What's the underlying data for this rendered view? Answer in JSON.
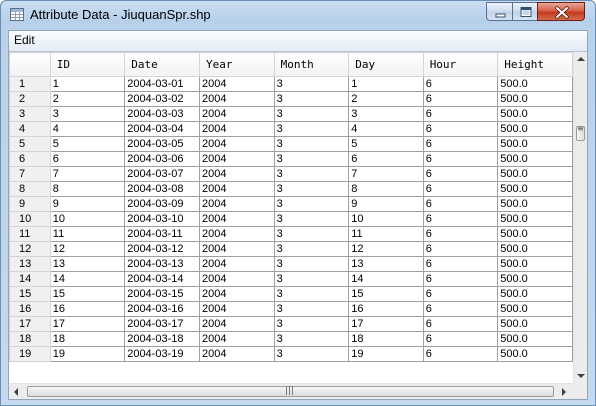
{
  "window": {
    "title": "Attribute Data - JiuquanSpr.shp"
  },
  "menu": {
    "items": [
      "Edit"
    ]
  },
  "table": {
    "columns": [
      "ID",
      "Date",
      "Year",
      "Month",
      "Day",
      "Hour",
      "Height"
    ],
    "rows": [
      {
        "num": "1",
        "cells": [
          "1",
          "2004-03-01",
          "2004",
          "3",
          "1",
          "6",
          "500.0"
        ]
      },
      {
        "num": "2",
        "cells": [
          "2",
          "2004-03-02",
          "2004",
          "3",
          "2",
          "6",
          "500.0"
        ]
      },
      {
        "num": "3",
        "cells": [
          "3",
          "2004-03-03",
          "2004",
          "3",
          "3",
          "6",
          "500.0"
        ]
      },
      {
        "num": "4",
        "cells": [
          "4",
          "2004-03-04",
          "2004",
          "3",
          "4",
          "6",
          "500.0"
        ]
      },
      {
        "num": "5",
        "cells": [
          "5",
          "2004-03-05",
          "2004",
          "3",
          "5",
          "6",
          "500.0"
        ]
      },
      {
        "num": "6",
        "cells": [
          "6",
          "2004-03-06",
          "2004",
          "3",
          "6",
          "6",
          "500.0"
        ]
      },
      {
        "num": "7",
        "cells": [
          "7",
          "2004-03-07",
          "2004",
          "3",
          "7",
          "6",
          "500.0"
        ]
      },
      {
        "num": "8",
        "cells": [
          "8",
          "2004-03-08",
          "2004",
          "3",
          "8",
          "6",
          "500.0"
        ]
      },
      {
        "num": "9",
        "cells": [
          "9",
          "2004-03-09",
          "2004",
          "3",
          "9",
          "6",
          "500.0"
        ]
      },
      {
        "num": "10",
        "cells": [
          "10",
          "2004-03-10",
          "2004",
          "3",
          "10",
          "6",
          "500.0"
        ]
      },
      {
        "num": "11",
        "cells": [
          "11",
          "2004-03-11",
          "2004",
          "3",
          "11",
          "6",
          "500.0"
        ]
      },
      {
        "num": "12",
        "cells": [
          "12",
          "2004-03-12",
          "2004",
          "3",
          "12",
          "6",
          "500.0"
        ]
      },
      {
        "num": "13",
        "cells": [
          "13",
          "2004-03-13",
          "2004",
          "3",
          "13",
          "6",
          "500.0"
        ]
      },
      {
        "num": "14",
        "cells": [
          "14",
          "2004-03-14",
          "2004",
          "3",
          "14",
          "6",
          "500.0"
        ]
      },
      {
        "num": "15",
        "cells": [
          "15",
          "2004-03-15",
          "2004",
          "3",
          "15",
          "6",
          "500.0"
        ]
      },
      {
        "num": "16",
        "cells": [
          "16",
          "2004-03-16",
          "2004",
          "3",
          "16",
          "6",
          "500.0"
        ]
      },
      {
        "num": "17",
        "cells": [
          "17",
          "2004-03-17",
          "2004",
          "3",
          "17",
          "6",
          "500.0"
        ]
      },
      {
        "num": "18",
        "cells": [
          "18",
          "2004-03-18",
          "2004",
          "3",
          "18",
          "6",
          "500.0"
        ]
      },
      {
        "num": "19",
        "cells": [
          "19",
          "2004-03-19",
          "2004",
          "3",
          "19",
          "6",
          "500.0"
        ]
      }
    ]
  },
  "icons": {
    "app": "table-icon",
    "minimize": "minimize-icon",
    "maximize": "maximize-icon",
    "close": "close-icon"
  },
  "colors": {
    "title_bar": "#b9d1ea",
    "close_button": "#c7432a",
    "grid_line": "#a0a0a0"
  }
}
